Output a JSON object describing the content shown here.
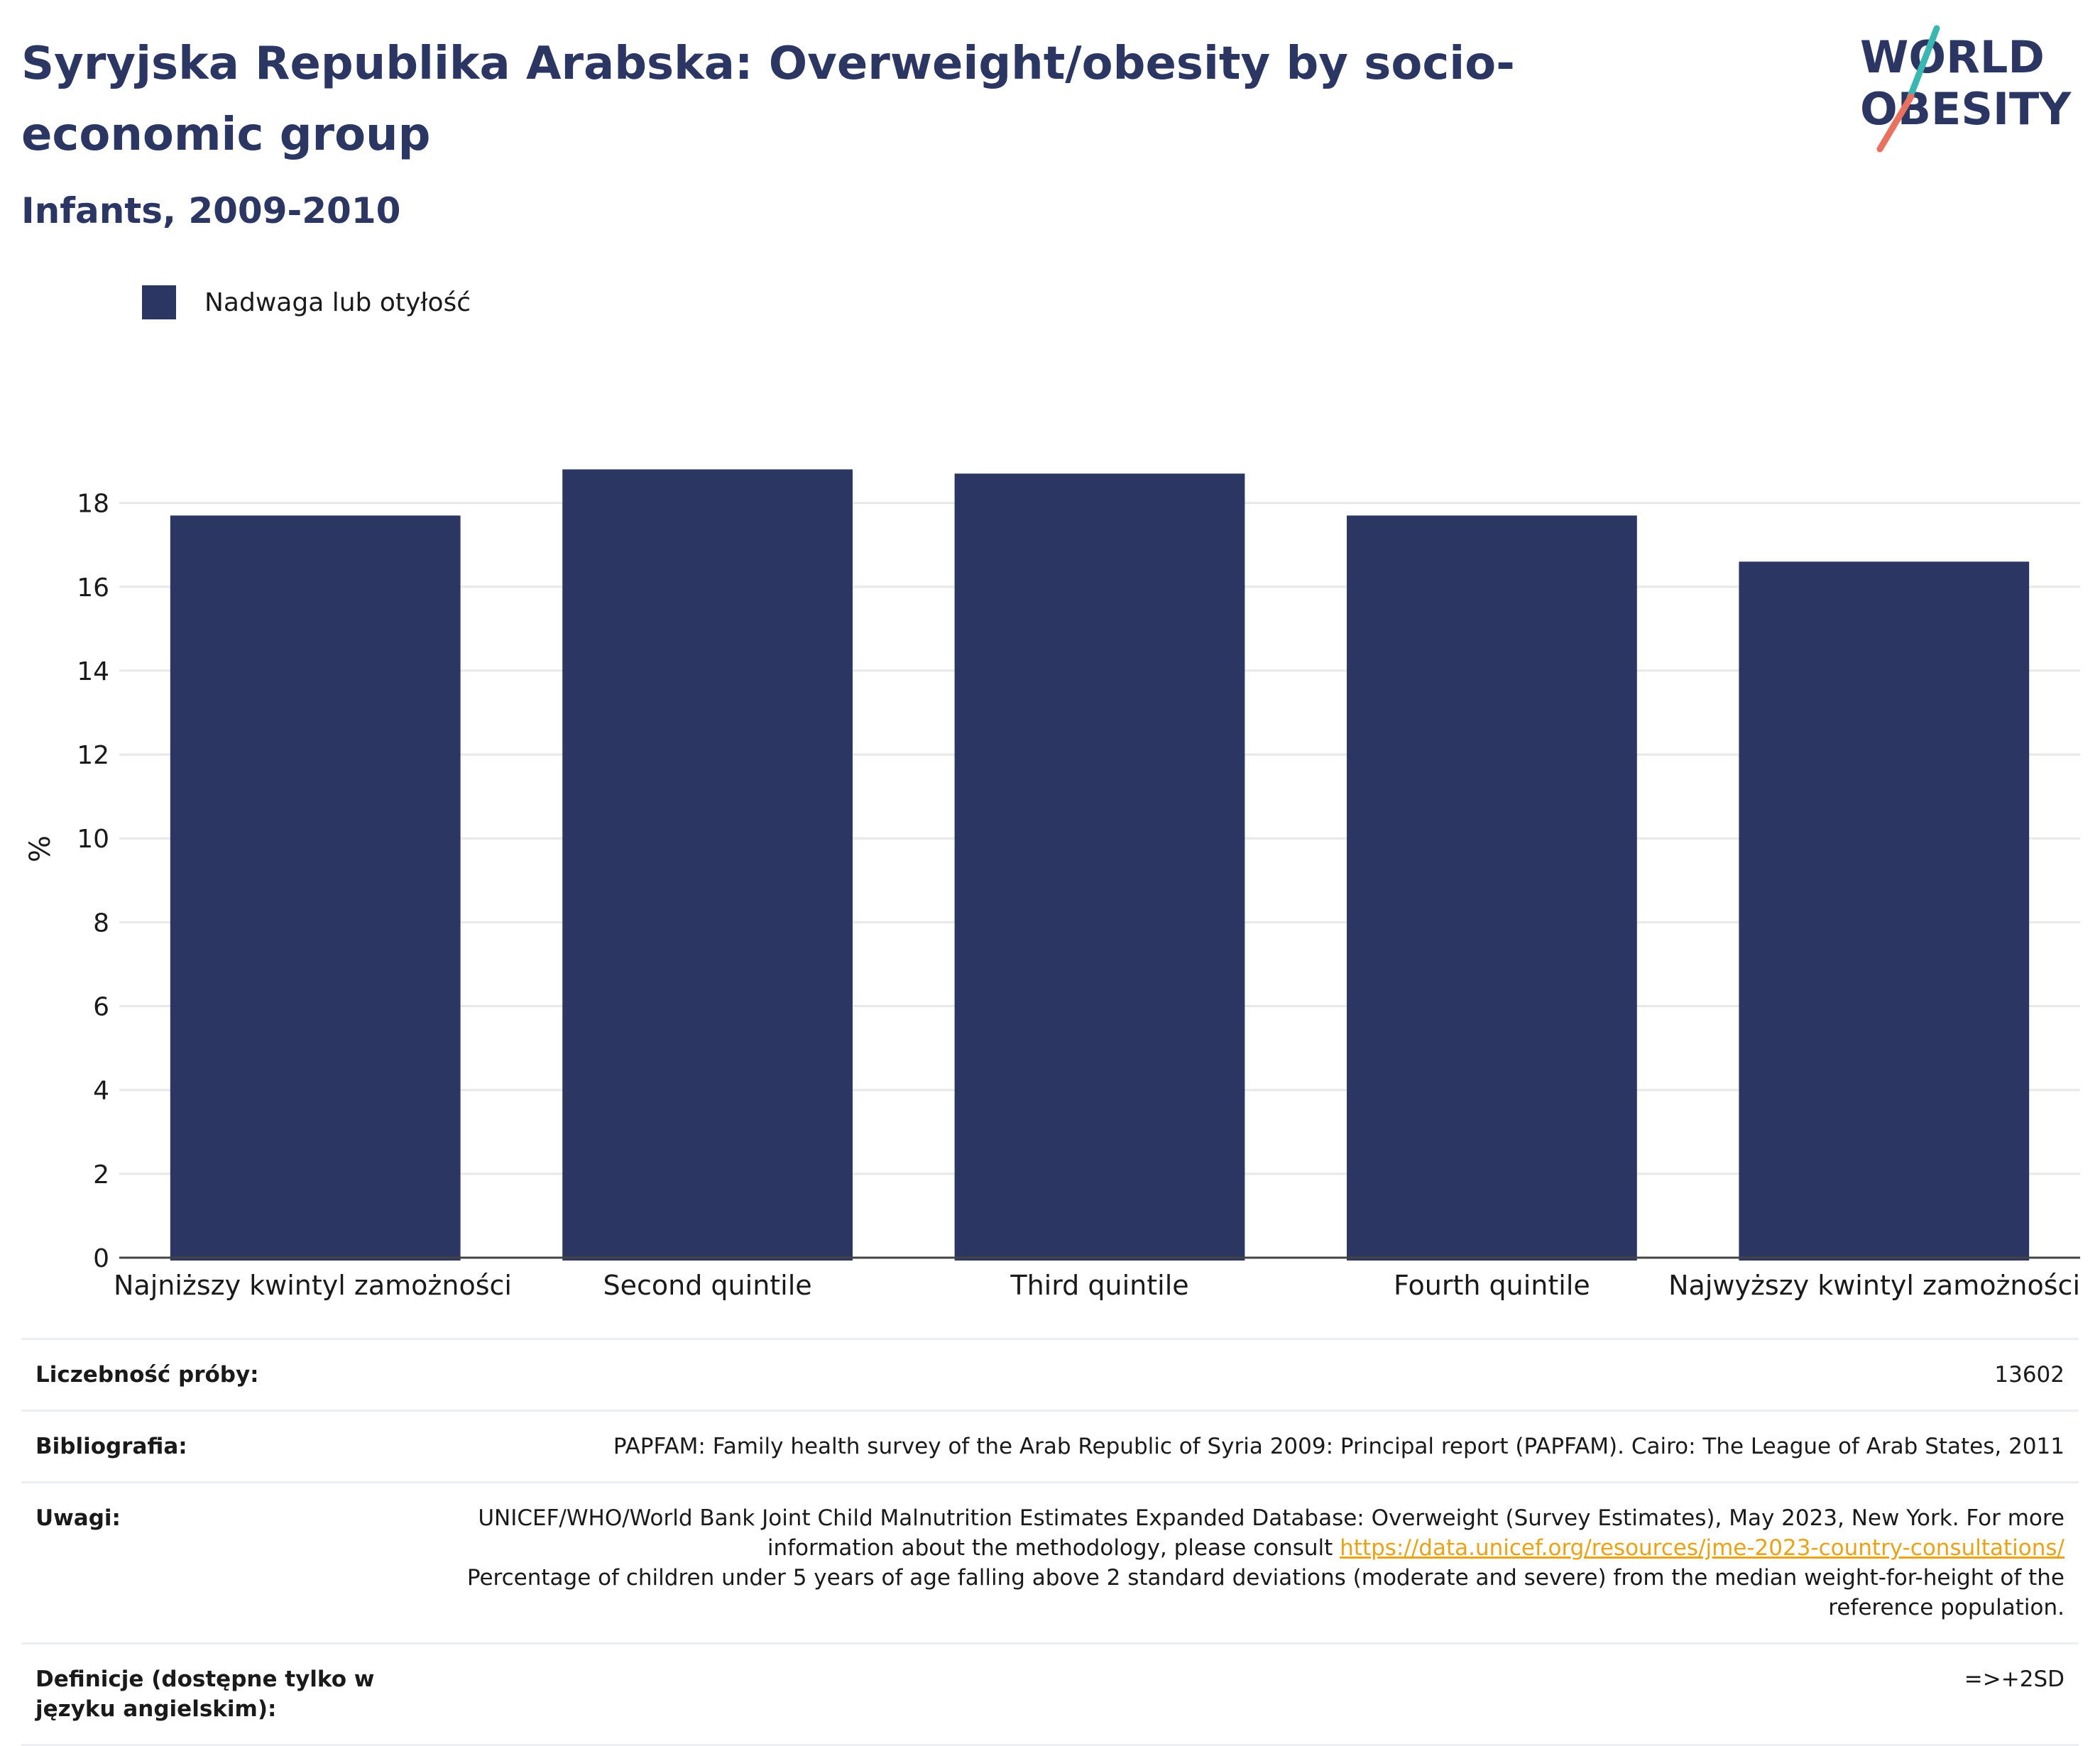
{
  "header": {
    "title": "Syryjska Republika Arabska: Overweight/obesity by socio-economic group",
    "subtitle": "Infants, 2009-2010"
  },
  "logo": {
    "line1": "WORLD",
    "line2": "OBESITY",
    "colors": {
      "navy": "#2b3663",
      "teal": "#3ab7b0",
      "coral": "#e8715f"
    }
  },
  "chart_data": {
    "type": "bar",
    "categories": [
      "Najniższy kwintyl zamożności",
      "Second quintile",
      "Third quintile",
      "Fourth quintile",
      "Najwyższy kwintyl zamożności"
    ],
    "series": [
      {
        "name": "Nadwaga lub otyłość",
        "values": [
          17.7,
          18.8,
          18.7,
          17.7,
          16.6
        ],
        "color": "#2b3663"
      }
    ],
    "ylabel": "%",
    "ylim": [
      0,
      19.5
    ],
    "yticks": [
      0,
      2,
      4,
      6,
      8,
      10,
      12,
      14,
      16,
      18
    ],
    "grid": true,
    "legend_position": "top-left"
  },
  "meta": {
    "sample_label": "Liczebność próby:",
    "sample_value": "13602",
    "bibliography_label": "Bibliografia:",
    "bibliography_value": "PAPFAM: Family health survey of the Arab Republic of Syria 2009: Principal report (PAPFAM). Cairo: The League of Arab States, 2011",
    "notes_label": "Uwagi:",
    "notes_text_1": "UNICEF/WHO/World Bank Joint Child Malnutrition Estimates Expanded Database: Overweight (Survey Estimates), May 2023, New York. For more information about the methodology, please consult ",
    "notes_link": "https://data.unicef.org/resources/jme-2023-country-consultations/",
    "notes_text_2": "Percentage of children under 5 years of age falling above 2 standard deviations (moderate and severe) from the median weight-for-height of the reference population.",
    "definition_label": "Definicje (dostępne tylko w języku angielskim):",
    "definition_value": "=>+2SD"
  }
}
